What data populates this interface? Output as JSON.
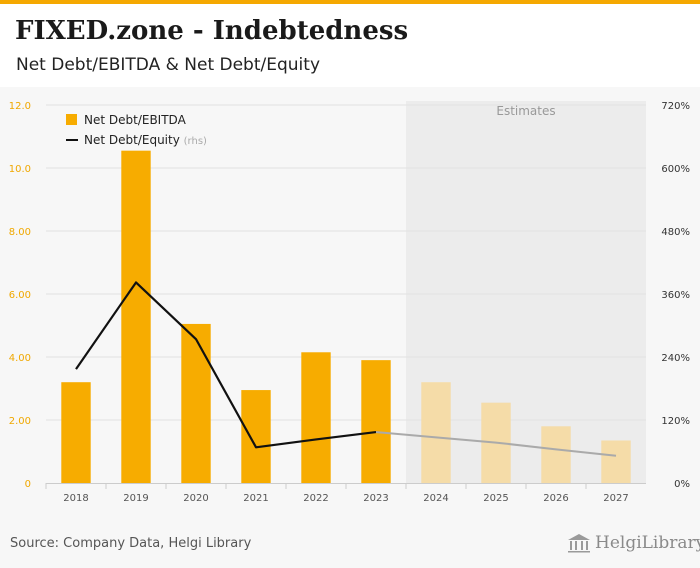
{
  "header": {
    "title": "FIXED.zone - Indebtedness",
    "subtitle": "Net Debt/EBITDA & Net Debt/Equity"
  },
  "footer": {
    "source": "Source: Company Data, Helgi Library",
    "logo_text": "HelgiLibrary."
  },
  "colors": {
    "bar": "#f7ac00",
    "bar_estimate": "#f5dca8",
    "line": "#111111",
    "line_estimate": "#aaaaaa",
    "estimate_band": "#ececec",
    "axis_text": "#f0a800"
  },
  "chart_data": {
    "type": "bar",
    "categories": [
      "2018",
      "2019",
      "2020",
      "2021",
      "2022",
      "2023",
      "2024",
      "2025",
      "2026",
      "2027"
    ],
    "estimates_label": "Estimates",
    "estimate_start_index": 6,
    "series": [
      {
        "name": "Net Debt/EBITDA",
        "type": "bar",
        "axis": "left",
        "values": [
          3.2,
          10.55,
          5.05,
          2.95,
          4.15,
          3.9,
          3.2,
          2.55,
          1.8,
          1.35
        ]
      },
      {
        "name": "Net Debt/Equity",
        "name_suffix": "(rhs)",
        "type": "line",
        "axis": "right",
        "values": [
          217,
          382,
          274,
          68,
          83,
          97,
          87,
          77,
          64,
          52
        ]
      }
    ],
    "y_left": {
      "ylim": [
        0,
        12
      ],
      "ticks": [
        0,
        2,
        4,
        6,
        8,
        10,
        12
      ],
      "tick_labels": [
        "0",
        "2.00",
        "4.00",
        "6.00",
        "8.00",
        "10.0",
        "12.0"
      ]
    },
    "y_right": {
      "ylim": [
        0,
        720
      ],
      "ticks": [
        0,
        120,
        240,
        360,
        480,
        600,
        720
      ],
      "tick_labels": [
        "0%",
        "120%",
        "240%",
        "360%",
        "480%",
        "600%",
        "720%"
      ]
    },
    "grid": true,
    "legend_position": "top-left"
  }
}
